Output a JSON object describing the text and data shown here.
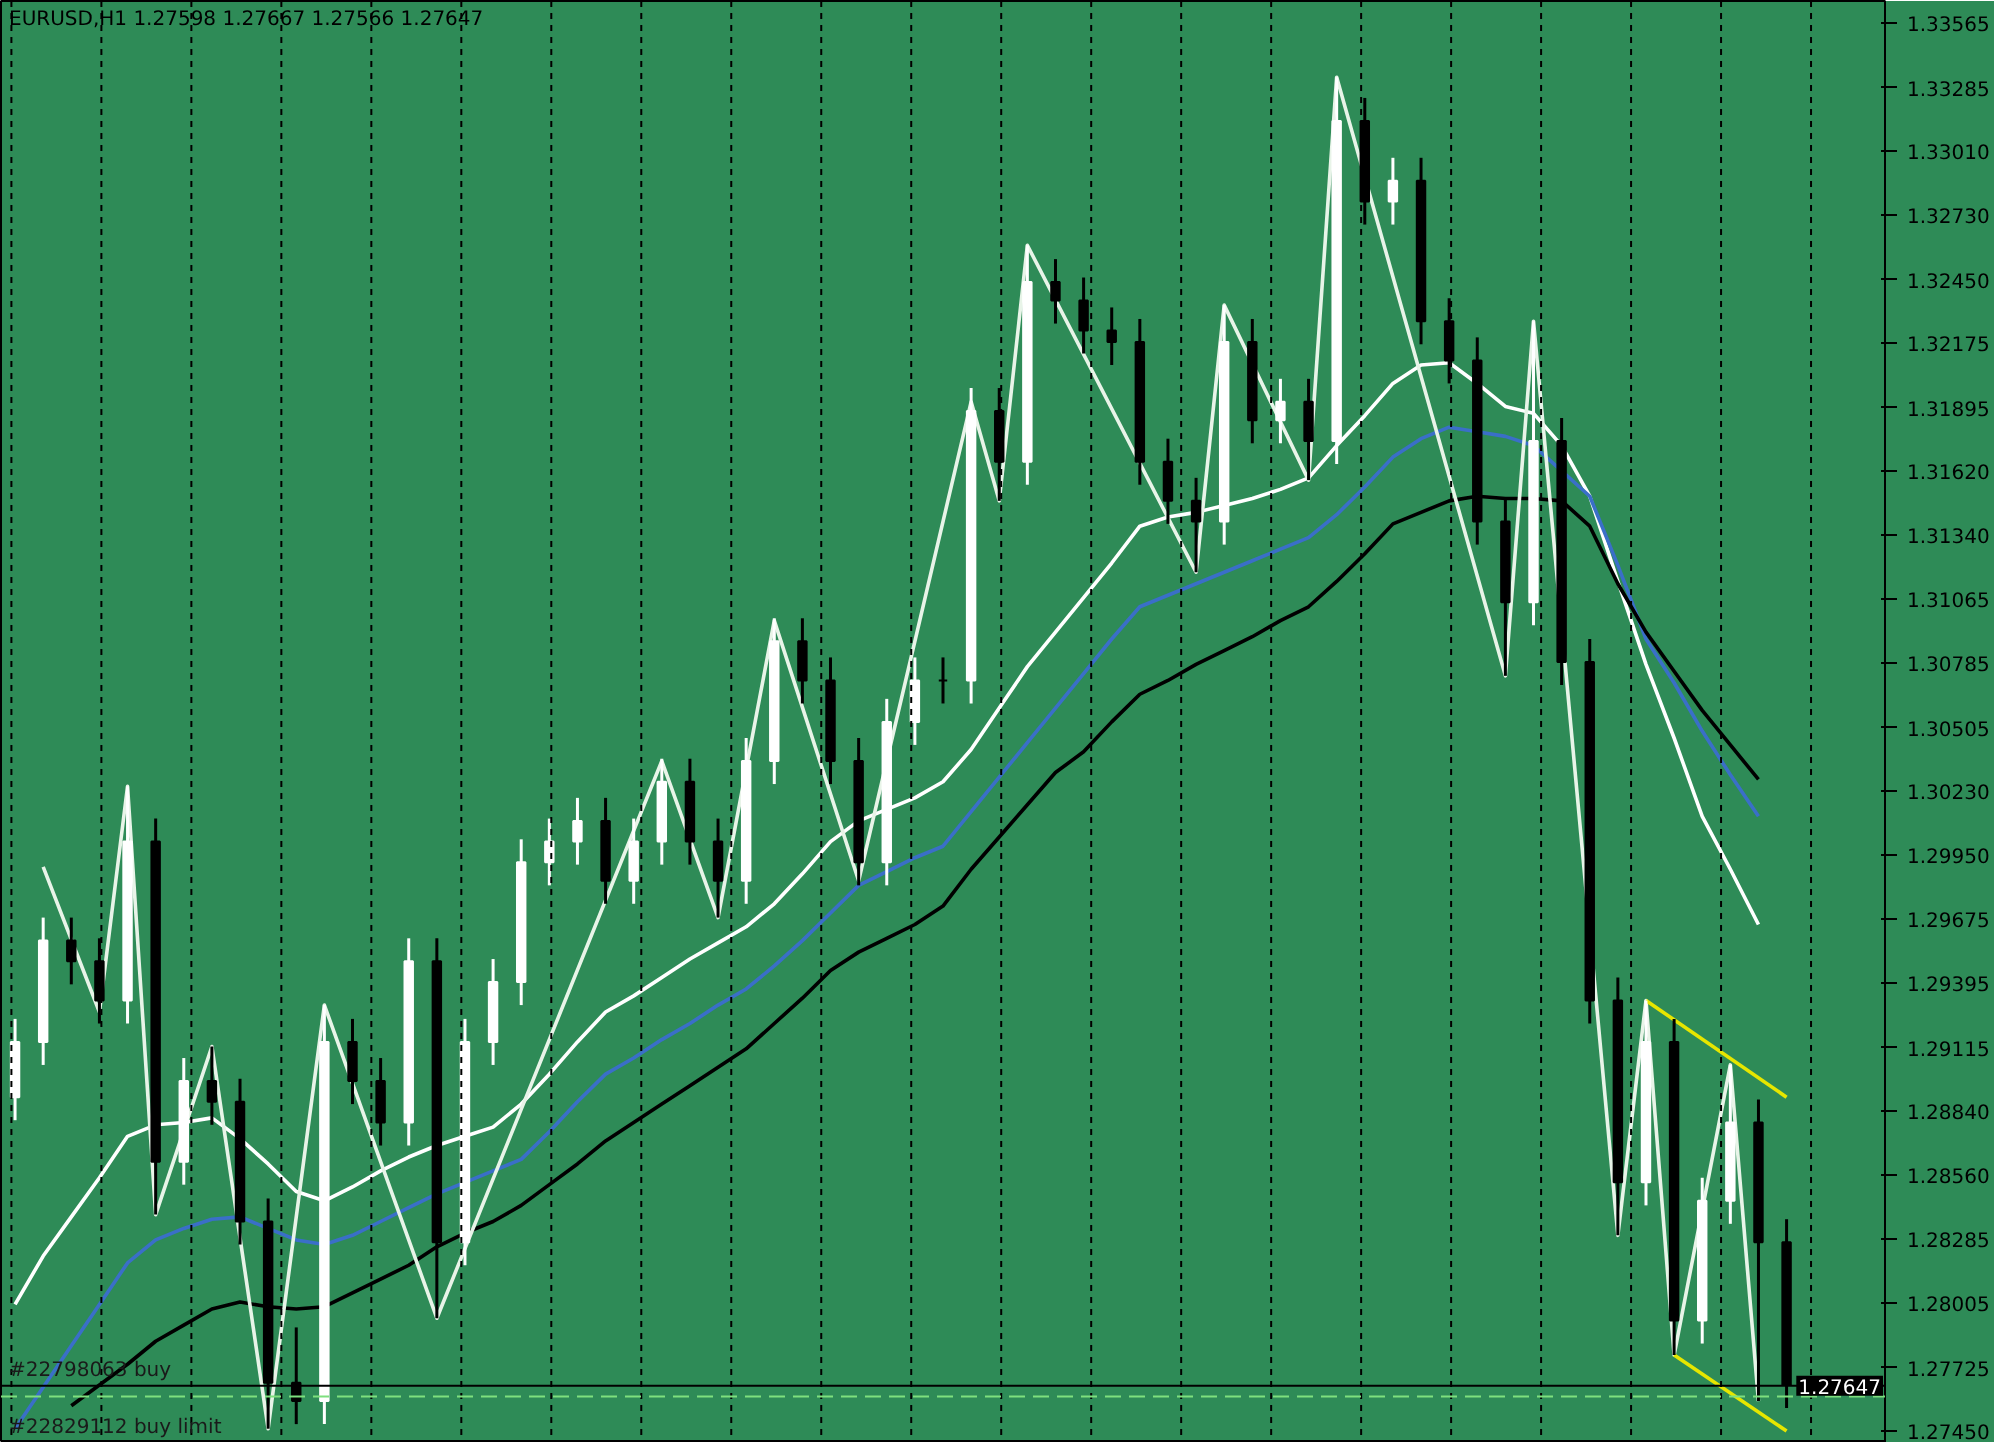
{
  "chart_data": {
    "type": "candlestick",
    "title": "EURUSD,H1  1.27598 1.27667 1.27566 1.27647",
    "categories": [
      null,
      null,
      null,
      null,
      null,
      null,
      null,
      null,
      null,
      null,
      null,
      null,
      null,
      null,
      null,
      null,
      null,
      null,
      null,
      null,
      null,
      null,
      null,
      null,
      null,
      null,
      null,
      null,
      null,
      null,
      null,
      null,
      null,
      null,
      null,
      null,
      null,
      null,
      null,
      null,
      null,
      null,
      null,
      null,
      null,
      null,
      null,
      null,
      null,
      null,
      null,
      null,
      null,
      null,
      null,
      null,
      null,
      null,
      null,
      null,
      null,
      null,
      null,
      null
    ],
    "ohlc": [
      [
        1.289,
        1.2924,
        1.288,
        1.2914
      ],
      [
        1.2914,
        1.2968,
        1.2904,
        1.2958
      ],
      [
        1.2958,
        1.2968,
        1.2939,
        1.2949
      ],
      [
        1.2949,
        1.2959,
        1.2922,
        1.2932
      ],
      [
        1.2932,
        1.3025,
        1.2922,
        1.3001
      ],
      [
        1.3001,
        1.3011,
        1.2839,
        1.2862
      ],
      [
        1.2862,
        1.2907,
        1.2852,
        1.2897
      ],
      [
        1.2897,
        1.2912,
        1.2878,
        1.2888
      ],
      [
        1.2888,
        1.2898,
        1.2826,
        1.2836
      ],
      [
        1.2836,
        1.2846,
        1.2746,
        1.2766
      ],
      [
        1.2766,
        1.279,
        1.2748,
        1.2758
      ],
      [
        1.2758,
        1.293,
        1.2748,
        1.2914
      ],
      [
        1.2914,
        1.2924,
        1.2887,
        1.2897
      ],
      [
        1.2897,
        1.2907,
        1.2869,
        1.2879
      ],
      [
        1.2879,
        1.2959,
        1.2869,
        1.2949
      ],
      [
        1.2949,
        1.2959,
        1.2794,
        1.2827
      ],
      [
        1.2827,
        1.2924,
        1.2817,
        1.2914
      ],
      [
        1.2914,
        1.295,
        1.2904,
        1.294
      ],
      [
        1.294,
        1.3002,
        1.293,
        1.2992
      ],
      [
        1.2992,
        1.3011,
        1.2982,
        1.3001
      ],
      [
        1.3001,
        1.302,
        1.2991,
        1.301
      ],
      [
        1.301,
        1.302,
        1.2974,
        1.2984
      ],
      [
        1.2984,
        1.3011,
        1.2974,
        1.3001
      ],
      [
        1.3001,
        1.3037,
        1.2991,
        1.3027
      ],
      [
        1.3027,
        1.3037,
        1.2991,
        1.3001
      ],
      [
        1.3001,
        1.3011,
        1.2968,
        1.2984
      ],
      [
        1.2984,
        1.3046,
        1.2974,
        1.3036
      ],
      [
        1.3036,
        1.3098,
        1.3026,
        1.3088
      ],
      [
        1.3088,
        1.3098,
        1.3061,
        1.3071
      ],
      [
        1.3071,
        1.3081,
        1.3026,
        1.3036
      ],
      [
        1.3036,
        1.3046,
        1.2982,
        1.2992
      ],
      [
        1.2992,
        1.3063,
        1.2982,
        1.3053
      ],
      [
        1.3053,
        1.3081,
        1.3043,
        1.3071
      ],
      [
        1.3071,
        1.3081,
        1.3061,
        1.3071
      ],
      [
        1.3071,
        1.3198,
        1.3061,
        1.3188
      ],
      [
        1.3188,
        1.3198,
        1.3149,
        1.3166
      ],
      [
        1.3166,
        1.326,
        1.3156,
        1.3244
      ],
      [
        1.3244,
        1.3254,
        1.3226,
        1.3236
      ],
      [
        1.3236,
        1.3246,
        1.3213,
        1.3223
      ],
      [
        1.3223,
        1.3233,
        1.3208,
        1.3218
      ],
      [
        1.3218,
        1.3228,
        1.3156,
        1.3166
      ],
      [
        1.3166,
        1.3176,
        1.3139,
        1.3149
      ],
      [
        1.3149,
        1.3159,
        1.3118,
        1.314
      ],
      [
        1.314,
        1.3234,
        1.313,
        1.3218
      ],
      [
        1.3218,
        1.3228,
        1.3174,
        1.3184
      ],
      [
        1.3184,
        1.3202,
        1.3174,
        1.3192
      ],
      [
        1.3192,
        1.3202,
        1.3158,
        1.3175
      ],
      [
        1.3175,
        1.3333,
        1.3165,
        1.3314
      ],
      [
        1.3314,
        1.3324,
        1.3269,
        1.3279
      ],
      [
        1.3279,
        1.3298,
        1.3269,
        1.3288
      ],
      [
        1.3288,
        1.3298,
        1.3217,
        1.3227
      ],
      [
        1.3227,
        1.3237,
        1.32,
        1.321
      ],
      [
        1.321,
        1.322,
        1.313,
        1.314
      ],
      [
        1.314,
        1.315,
        1.3073,
        1.3105
      ],
      [
        1.3105,
        1.3227,
        1.3095,
        1.3175
      ],
      [
        1.3175,
        1.3185,
        1.3069,
        1.3079
      ],
      [
        1.3079,
        1.3089,
        1.2922,
        1.2932
      ],
      [
        1.2932,
        1.2942,
        1.283,
        1.2853
      ],
      [
        1.2853,
        1.2932,
        1.2843,
        1.2914
      ],
      [
        1.2914,
        1.2924,
        1.2778,
        1.2793
      ],
      [
        1.2793,
        1.2855,
        1.2783,
        1.2845
      ],
      [
        1.2845,
        1.2904,
        1.2835,
        1.2879
      ],
      [
        1.2879,
        1.2889,
        1.2758,
        1.2827
      ],
      [
        1.2827,
        1.2837,
        1.2755,
        1.2765
      ]
    ],
    "colors": [
      "#ffffff",
      "#ffffff",
      "#000000",
      "#000000",
      "#ffffff",
      "#000000",
      "#ffffff",
      "#000000",
      "#000000",
      "#000000",
      "#000000",
      "#ffffff",
      "#000000",
      "#000000",
      "#ffffff",
      "#000000",
      "#ffffff",
      "#ffffff",
      "#ffffff",
      "#ffffff",
      "#ffffff",
      "#000000",
      "#ffffff",
      "#ffffff",
      "#000000",
      "#000000",
      "#ffffff",
      "#ffffff",
      "#000000",
      "#000000",
      "#000000",
      "#ffffff",
      "#ffffff",
      "#000000",
      "#ffffff",
      "#000000",
      "#ffffff",
      "#000000",
      "#000000",
      "#000000",
      "#000000",
      "#000000",
      "#000000",
      "#ffffff",
      "#000000",
      "#ffffff",
      "#000000",
      "#ffffff",
      "#000000",
      "#ffffff",
      "#000000",
      "#000000",
      "#000000",
      "#000000",
      "#ffffff",
      "#000000",
      "#000000",
      "#000000",
      "#ffffff",
      "#000000",
      "#ffffff",
      "#ffffff",
      "#000000",
      "#000000"
    ],
    "series": [
      {
        "type": "line",
        "color": "#ffffff",
        "values": [
          1.28,
          1.2821,
          1.2838,
          1.2855,
          1.2873,
          1.2878,
          1.2879,
          1.2881,
          1.2872,
          1.2861,
          1.2849,
          1.2845,
          1.2851,
          1.2858,
          1.2864,
          1.2869,
          1.2873,
          1.2877,
          1.2887,
          1.29,
          1.2914,
          1.2927,
          1.2934,
          1.2942,
          1.295,
          1.2957,
          1.2964,
          1.2974,
          1.2987,
          1.3001,
          1.301,
          1.3015,
          1.302,
          1.3027,
          1.3041,
          1.3059,
          1.3077,
          1.3092,
          1.3107,
          1.3122,
          1.3138,
          1.3142,
          1.3144,
          1.3147,
          1.315,
          1.3154,
          1.3159,
          1.3173,
          1.3186,
          1.32,
          1.3208,
          1.3209,
          1.32,
          1.319,
          1.3187,
          1.3173,
          1.3151,
          1.3114,
          1.3078,
          1.3046,
          1.3012,
          1.2989,
          1.2965,
          null
        ]
      },
      {
        "type": "line",
        "color": "#3a6fc8",
        "values": [
          1.2746,
          1.2764,
          1.2782,
          1.28,
          1.2818,
          1.2828,
          1.2833,
          1.2837,
          1.2838,
          1.2833,
          1.2828,
          1.2826,
          1.283,
          1.2836,
          1.2842,
          1.2848,
          1.2853,
          1.2858,
          1.2863,
          1.2875,
          1.2888,
          1.29,
          1.2907,
          1.2915,
          1.2922,
          1.293,
          1.2937,
          1.2947,
          1.2958,
          1.297,
          1.2982,
          1.2988,
          1.2994,
          1.2999,
          1.3014,
          1.3029,
          1.3044,
          1.3059,
          1.3074,
          1.3089,
          1.3103,
          1.3108,
          1.3113,
          1.3118,
          1.3123,
          1.3128,
          1.3133,
          1.3143,
          1.3155,
          1.3168,
          1.3176,
          1.3181,
          1.3179,
          1.3177,
          1.3173,
          1.3162,
          1.3151,
          1.3121,
          1.3089,
          1.307,
          1.3049,
          1.303,
          1.3012,
          null
        ]
      },
      {
        "type": "line",
        "color": "#000000",
        "values": [
          null,
          null,
          1.2756,
          1.2765,
          1.2774,
          1.2784,
          1.2791,
          1.2798,
          1.2801,
          1.2799,
          1.2798,
          1.2799,
          1.2805,
          1.2811,
          1.2817,
          1.2825,
          1.2831,
          1.2836,
          1.2843,
          1.2852,
          1.2861,
          1.2871,
          1.2879,
          1.2887,
          1.2895,
          1.2903,
          1.2911,
          1.2922,
          1.2933,
          1.2945,
          1.2953,
          1.2959,
          1.2965,
          1.2973,
          1.2989,
          1.3003,
          1.3017,
          1.3031,
          1.304,
          1.3053,
          1.3065,
          1.3071,
          1.3078,
          1.3084,
          1.309,
          1.3097,
          1.3103,
          1.3114,
          1.3126,
          1.3139,
          1.3144,
          1.3149,
          1.3151,
          1.315,
          1.315,
          1.3149,
          1.3138,
          1.3113,
          1.3092,
          1.3075,
          1.3058,
          1.3043,
          1.3028,
          null
        ]
      },
      {
        "type": "line",
        "color": "#e8f4e8",
        "values": [
          null,
          1.299,
          null,
          1.2927,
          1.3025,
          1.2839,
          null,
          1.2912,
          null,
          1.2746,
          null,
          1.293,
          null,
          null,
          null,
          1.2794,
          null,
          null,
          null,
          null,
          null,
          null,
          null,
          1.3036,
          null,
          1.2968,
          null,
          1.3097,
          null,
          null,
          1.2984,
          null,
          null,
          null,
          1.3192,
          1.3149,
          1.326,
          null,
          null,
          null,
          null,
          null,
          1.3118,
          1.3234,
          null,
          null,
          1.3158,
          1.3333,
          null,
          null,
          null,
          null,
          null,
          1.3073,
          1.3227,
          null,
          null,
          1.283,
          1.2932,
          1.2778,
          null,
          1.2904,
          1.2758,
          null
        ]
      },
      {
        "type": "line",
        "color": "#e6e600",
        "values": [
          null,
          null,
          null,
          null,
          null,
          null,
          null,
          null,
          null,
          null,
          null,
          null,
          null,
          null,
          null,
          null,
          null,
          null,
          null,
          null,
          null,
          null,
          null,
          null,
          null,
          null,
          null,
          null,
          null,
          null,
          null,
          null,
          null,
          null,
          null,
          null,
          null,
          null,
          null,
          null,
          null,
          null,
          null,
          null,
          null,
          null,
          null,
          null,
          null,
          null,
          null,
          null,
          null,
          null,
          null,
          null,
          null,
          null,
          1.2932,
          null,
          null,
          null,
          null,
          1.289
        ]
      },
      {
        "type": "line",
        "color": "#e6e600",
        "values": [
          null,
          null,
          null,
          null,
          null,
          null,
          null,
          null,
          null,
          null,
          null,
          null,
          null,
          null,
          null,
          null,
          null,
          null,
          null,
          null,
          null,
          null,
          null,
          null,
          null,
          null,
          null,
          null,
          null,
          null,
          null,
          null,
          null,
          null,
          null,
          null,
          null,
          null,
          null,
          null,
          null,
          null,
          null,
          null,
          null,
          null,
          null,
          null,
          null,
          null,
          null,
          null,
          null,
          null,
          null,
          null,
          null,
          null,
          null,
          1.2778,
          null,
          null,
          null,
          1.2745
        ]
      }
    ],
    "ylim": [
      1.27398,
      1.33661
    ],
    "grid": "x",
    "yticks": [
      {
        "value": 1.33565,
        "label": "1.33565"
      },
      {
        "value": 1.33285,
        "label": "1.33285"
      },
      {
        "value": 1.3301,
        "label": "1.33010"
      },
      {
        "value": 1.3273,
        "label": "1.32730"
      },
      {
        "value": 1.3245,
        "label": "1.32450"
      },
      {
        "value": 1.32175,
        "label": "1.32175"
      },
      {
        "value": 1.31895,
        "label": "1.31895"
      },
      {
        "value": 1.3162,
        "label": "1.31620"
      },
      {
        "value": 1.3134,
        "label": "1.31340"
      },
      {
        "value": 1.31065,
        "label": "1.31065"
      },
      {
        "value": 1.30785,
        "label": "1.30785"
      },
      {
        "value": 1.30505,
        "label": "1.30505"
      },
      {
        "value": 1.3023,
        "label": "1.30230"
      },
      {
        "value": 1.2995,
        "label": "1.29950"
      },
      {
        "value": 1.29675,
        "label": "1.29675"
      },
      {
        "value": 1.29395,
        "label": "1.29395"
      },
      {
        "value": 1.29115,
        "label": "1.29115"
      },
      {
        "value": 1.2884,
        "label": "1.28840"
      },
      {
        "value": 1.2856,
        "label": "1.28560"
      },
      {
        "value": 1.28285,
        "label": "1.28285"
      },
      {
        "value": 1.28005,
        "label": "1.28005"
      },
      {
        "value": 1.27725,
        "label": "1.27725"
      },
      {
        "value": 1.2745,
        "label": "1.27450"
      }
    ],
    "ref_lines": [
      {
        "axis": "y",
        "value": 1.27647,
        "label": "1.27647",
        "color": "#000000"
      },
      {
        "axis": "y",
        "value": 1.276,
        "label": null,
        "color": "#7ee07e",
        "line_style": "dashed"
      }
    ],
    "annotations": [
      {
        "text": "#22798063 buy",
        "y": 1.27647
      },
      "#22829112 buy limit"
    ]
  }
}
